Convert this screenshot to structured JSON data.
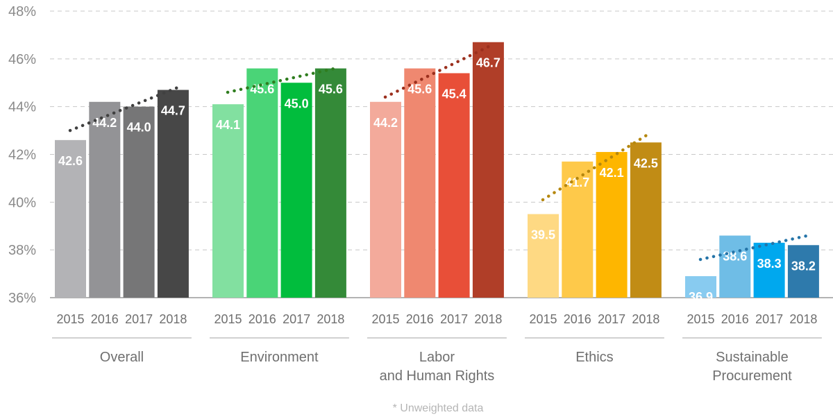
{
  "chart_data": {
    "type": "bar",
    "title": "",
    "xlabel": "",
    "ylabel": "",
    "y_unit": "%",
    "ylim": [
      36,
      48
    ],
    "y_ticks": [
      36,
      38,
      40,
      42,
      44,
      46,
      48
    ],
    "y_tick_labels": [
      "36%",
      "38%",
      "40%",
      "42%",
      "44%",
      "46%",
      "48%"
    ],
    "grid": true,
    "trendline": "dotted",
    "years": [
      "2015",
      "2016",
      "2017",
      "2018"
    ],
    "groups": [
      {
        "label_lines": [
          "Overall"
        ],
        "values": [
          42.6,
          44.2,
          44.0,
          44.7
        ],
        "labels": [
          "42.6",
          "44.2",
          "44.0",
          "44.7"
        ],
        "colors": [
          "#b3b3b6",
          "#939396",
          "#767677",
          "#474747"
        ],
        "trend_color": "#404040",
        "trend": [
          43.0,
          44.8
        ]
      },
      {
        "label_lines": [
          "Environment"
        ],
        "values": [
          44.1,
          45.6,
          45.0,
          45.6
        ],
        "labels": [
          "44.1",
          "45.6",
          "45.0",
          "45.6"
        ],
        "colors": [
          "#82e0a0",
          "#4ad477",
          "#01bd3d",
          "#348a38"
        ],
        "trend_color": "#2f7d1f",
        "trend": [
          44.6,
          45.6
        ]
      },
      {
        "label_lines": [
          "Labor",
          "and Human Rights"
        ],
        "values": [
          44.2,
          45.6,
          45.4,
          46.7
        ],
        "labels": [
          "44.2",
          "45.6",
          "45.4",
          "46.7"
        ],
        "colors": [
          "#f3aa9b",
          "#ef8870",
          "#e84f38",
          "#b03e28"
        ],
        "trend_color": "#9b2f1d",
        "trend": [
          44.4,
          46.6
        ]
      },
      {
        "label_lines": [
          "Ethics"
        ],
        "values": [
          39.5,
          41.7,
          42.1,
          42.5
        ],
        "labels": [
          "39.5",
          "41.7",
          "42.1",
          "42.5"
        ],
        "colors": [
          "#fed983",
          "#fec94a",
          "#feb600",
          "#c18c15"
        ],
        "trend_color": "#b5870e",
        "trend": [
          40.1,
          42.9
        ]
      },
      {
        "label_lines": [
          "Sustainable",
          "Procurement"
        ],
        "values": [
          36.9,
          38.6,
          38.3,
          38.2
        ],
        "labels": [
          "36.9",
          "38.6",
          "38.3",
          "38.2"
        ],
        "colors": [
          "#88cbf0",
          "#6fbde6",
          "#00a8ee",
          "#2e7aac"
        ],
        "trend_color": "#2474a8",
        "trend": [
          37.6,
          38.6
        ]
      }
    ],
    "footnote": "* Unweighted data"
  }
}
